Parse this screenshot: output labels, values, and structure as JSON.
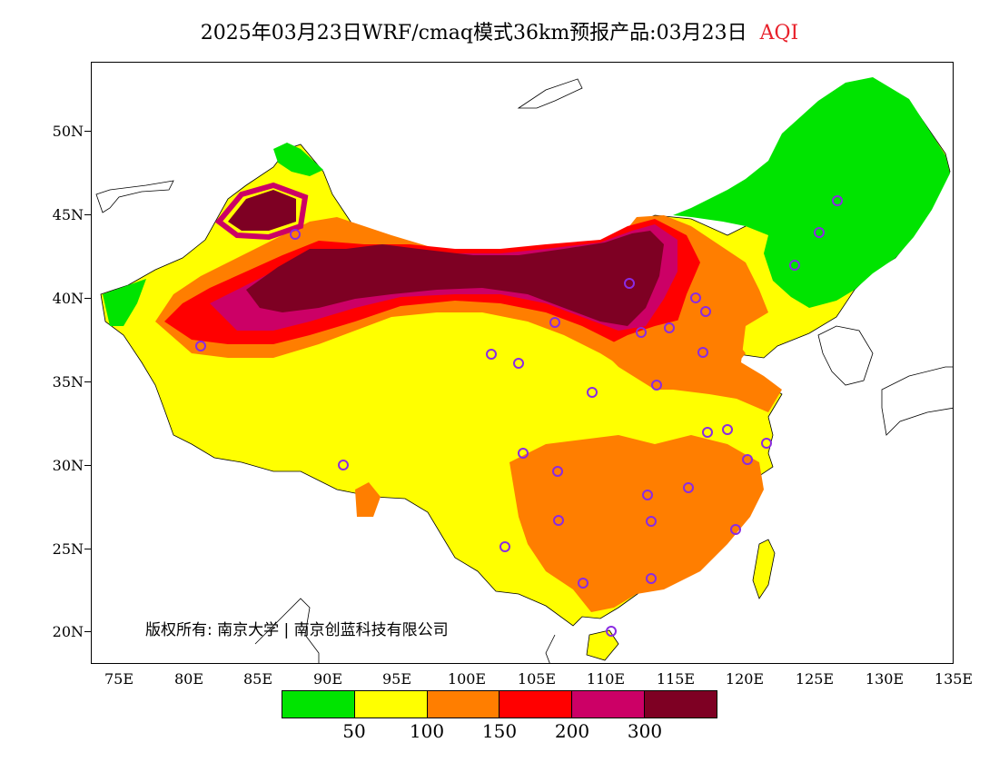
{
  "title": {
    "main": "2025年03月23日WRF/cmaq模式36km预报产品:03月23日",
    "variable": "AQI",
    "variable_color": "#e8202a"
  },
  "map": {
    "lat_labels": [
      "50N",
      "45N",
      "40N",
      "35N",
      "30N",
      "25N",
      "20N"
    ],
    "lon_labels": [
      "75E",
      "80E",
      "85E",
      "90E",
      "95E",
      "100E",
      "105E",
      "110E",
      "115E",
      "120E",
      "125E",
      "130E",
      "135E"
    ],
    "lon_range": [
      73,
      135
    ],
    "lat_range": [
      18,
      54
    ],
    "copyright": "版权所有: 南京大学 | 南京创蓝科技有限公司",
    "marker_color": "#8a2be2",
    "aqi_colors": {
      "0-50": "#00e400",
      "50-100": "#ffff00",
      "100-150": "#ff7e00",
      "150-200": "#ff0000",
      "200-300": "#cc0066",
      "300+": "#7e0023"
    }
  },
  "legend": {
    "colors": [
      "#00e400",
      "#ffff00",
      "#ff7e00",
      "#ff0000",
      "#cc0066",
      "#7e0023"
    ],
    "labels": [
      "50",
      "100",
      "150",
      "200",
      "300"
    ]
  }
}
